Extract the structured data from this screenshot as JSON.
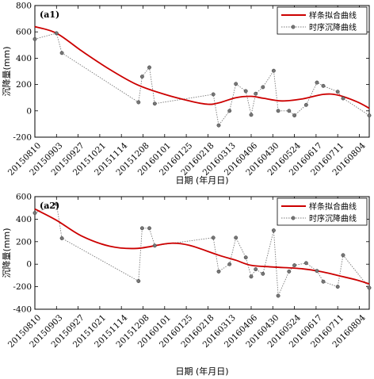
{
  "xticks": [
    "20150810",
    "20150903",
    "20150927",
    "20151021",
    "20151114",
    "20151208",
    "20160101",
    "20160125",
    "20160218",
    "20160313",
    "20160406",
    "20160430",
    "20160524",
    "20160617",
    "20160711",
    "20160804"
  ],
  "xlabel": "日期 (年月日)",
  "ylabel": "沉降量(mm)",
  "legend": {
    "spline": "样条拟合曲线",
    "series": "时序沉降曲线"
  },
  "colors": {
    "spline": "#cc0000",
    "series": "#7a7a7a"
  },
  "chart_data": [
    {
      "type": "line",
      "panel": "(a1)",
      "xlim": [
        "20150810",
        "20160815"
      ],
      "ylim": [
        -200,
        800
      ],
      "yticks": [
        -200,
        0,
        200,
        400,
        600,
        800
      ],
      "series": [
        {
          "name": "时序沉降曲线",
          "points": [
            [
              "20150810",
              545
            ],
            [
              "20150903",
              590
            ],
            [
              "20150909",
              440
            ],
            [
              "20151203",
              65
            ],
            [
              "20151207",
              260
            ],
            [
              "20151215",
              330
            ],
            [
              "20151221",
              55
            ],
            [
              "20160224",
              125
            ],
            [
              "20160301",
              -110
            ],
            [
              "20160313",
              0
            ],
            [
              "20160320",
              205
            ],
            [
              "20160331",
              150
            ],
            [
              "20160406",
              -30
            ],
            [
              "20160411",
              130
            ],
            [
              "20160419",
              180
            ],
            [
              "20160501",
              305
            ],
            [
              "20160506",
              0
            ],
            [
              "20160518",
              0
            ],
            [
              "20160524",
              -35
            ],
            [
              "20160606",
              45
            ],
            [
              "20160618",
              215
            ],
            [
              "20160625",
              190
            ],
            [
              "20160711",
              145
            ],
            [
              "20160717",
              95
            ],
            [
              "20160815",
              -35
            ]
          ]
        },
        {
          "name": "样条拟合曲线",
          "points": [
            [
              "20150810",
              640
            ],
            [
              "20150903",
              590
            ],
            [
              "20151001",
              455
            ],
            [
              "20151101",
              315
            ],
            [
              "20151201",
              200
            ],
            [
              "20160101",
              125
            ],
            [
              "20160201",
              70
            ],
            [
              "20160218",
              50
            ],
            [
              "20160301",
              60
            ],
            [
              "20160320",
              100
            ],
            [
              "20160406",
              110
            ],
            [
              "20160420",
              95
            ],
            [
              "20160510",
              75
            ],
            [
              "20160601",
              90
            ],
            [
              "20160625",
              125
            ],
            [
              "20160711",
              120
            ],
            [
              "20160801",
              70
            ],
            [
              "20160815",
              20
            ]
          ]
        }
      ]
    },
    {
      "type": "line",
      "panel": "(a2)",
      "xlim": [
        "20150810",
        "20160815"
      ],
      "ylim": [
        -400,
        600
      ],
      "yticks": [
        -400,
        -200,
        0,
        200,
        400,
        600
      ],
      "series": [
        {
          "name": "时序沉降曲线",
          "points": [
            [
              "20150810",
              455
            ],
            [
              "20150903",
              535
            ],
            [
              "20150909",
              230
            ],
            [
              "20151203",
              -150
            ],
            [
              "20151207",
              320
            ],
            [
              "20151215",
              320
            ],
            [
              "20151221",
              165
            ],
            [
              "20160224",
              235
            ],
            [
              "20160301",
              -65
            ],
            [
              "20160313",
              0
            ],
            [
              "20160320",
              235
            ],
            [
              "20160331",
              60
            ],
            [
              "20160406",
              -110
            ],
            [
              "20160411",
              -45
            ],
            [
              "20160419",
              -85
            ],
            [
              "20160501",
              300
            ],
            [
              "20160506",
              -280
            ],
            [
              "20160518",
              -65
            ],
            [
              "20160524",
              -10
            ],
            [
              "20160606",
              10
            ],
            [
              "20160618",
              -60
            ],
            [
              "20160625",
              -155
            ],
            [
              "20160711",
              -200
            ],
            [
              "20160717",
              80
            ],
            [
              "20160815",
              -210
            ]
          ]
        },
        {
          "name": "样条拟合曲线",
          "points": [
            [
              "20150810",
              490
            ],
            [
              "20150903",
              390
            ],
            [
              "20151001",
              250
            ],
            [
              "20151101",
              160
            ],
            [
              "20151201",
              140
            ],
            [
              "20160101",
              180
            ],
            [
              "20160115",
              185
            ],
            [
              "20160201",
              160
            ],
            [
              "20160301",
              80
            ],
            [
              "20160320",
              35
            ],
            [
              "20160406",
              -10
            ],
            [
              "20160501",
              -25
            ],
            [
              "20160601",
              -40
            ],
            [
              "20160625",
              -70
            ],
            [
              "20160711",
              -100
            ],
            [
              "20160801",
              -140
            ],
            [
              "20160815",
              -175
            ]
          ]
        }
      ]
    }
  ]
}
